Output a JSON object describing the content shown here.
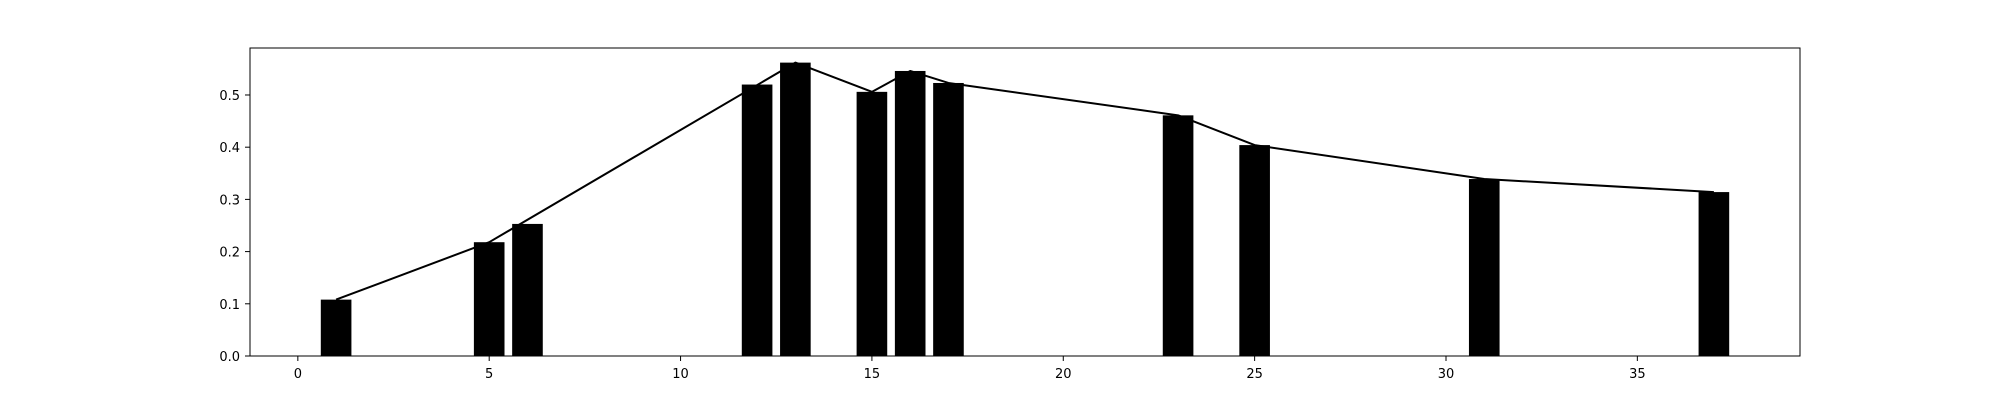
{
  "chart_data": {
    "type": "bar",
    "title": "",
    "xlabel": "",
    "ylabel": "",
    "xlim": [
      -1.25,
      39.25
    ],
    "ylim": [
      0,
      0.59
    ],
    "grid": false,
    "legend": "none",
    "bar_width": 0.8,
    "bar_color": "#000000",
    "line_color": "#000000",
    "x": [
      1,
      5,
      6,
      12,
      13,
      15,
      16,
      17,
      23,
      25,
      31,
      37
    ],
    "values": [
      0.108,
      0.218,
      0.253,
      0.52,
      0.562,
      0.506,
      0.546,
      0.523,
      0.461,
      0.404,
      0.339,
      0.314
    ],
    "line_x": [
      1,
      5,
      13,
      15,
      16,
      17,
      23,
      25,
      31,
      37
    ],
    "line_values": [
      0.108,
      0.218,
      0.562,
      0.506,
      0.546,
      0.523,
      0.461,
      0.404,
      0.339,
      0.314
    ],
    "x_ticks": [
      {
        "value": 0,
        "label": "0"
      },
      {
        "value": 5,
        "label": "5"
      },
      {
        "value": 10,
        "label": "10"
      },
      {
        "value": 15,
        "label": "15"
      },
      {
        "value": 20,
        "label": "20"
      },
      {
        "value": 25,
        "label": "25"
      },
      {
        "value": 30,
        "label": "30"
      },
      {
        "value": 35,
        "label": "35"
      }
    ],
    "y_ticks": [
      {
        "value": 0.0,
        "label": "0.0"
      },
      {
        "value": 0.1,
        "label": "0.1"
      },
      {
        "value": 0.2,
        "label": "0.2"
      },
      {
        "value": 0.3,
        "label": "0.3"
      },
      {
        "value": 0.4,
        "label": "0.4"
      },
      {
        "value": 0.5,
        "label": "0.5"
      }
    ]
  }
}
